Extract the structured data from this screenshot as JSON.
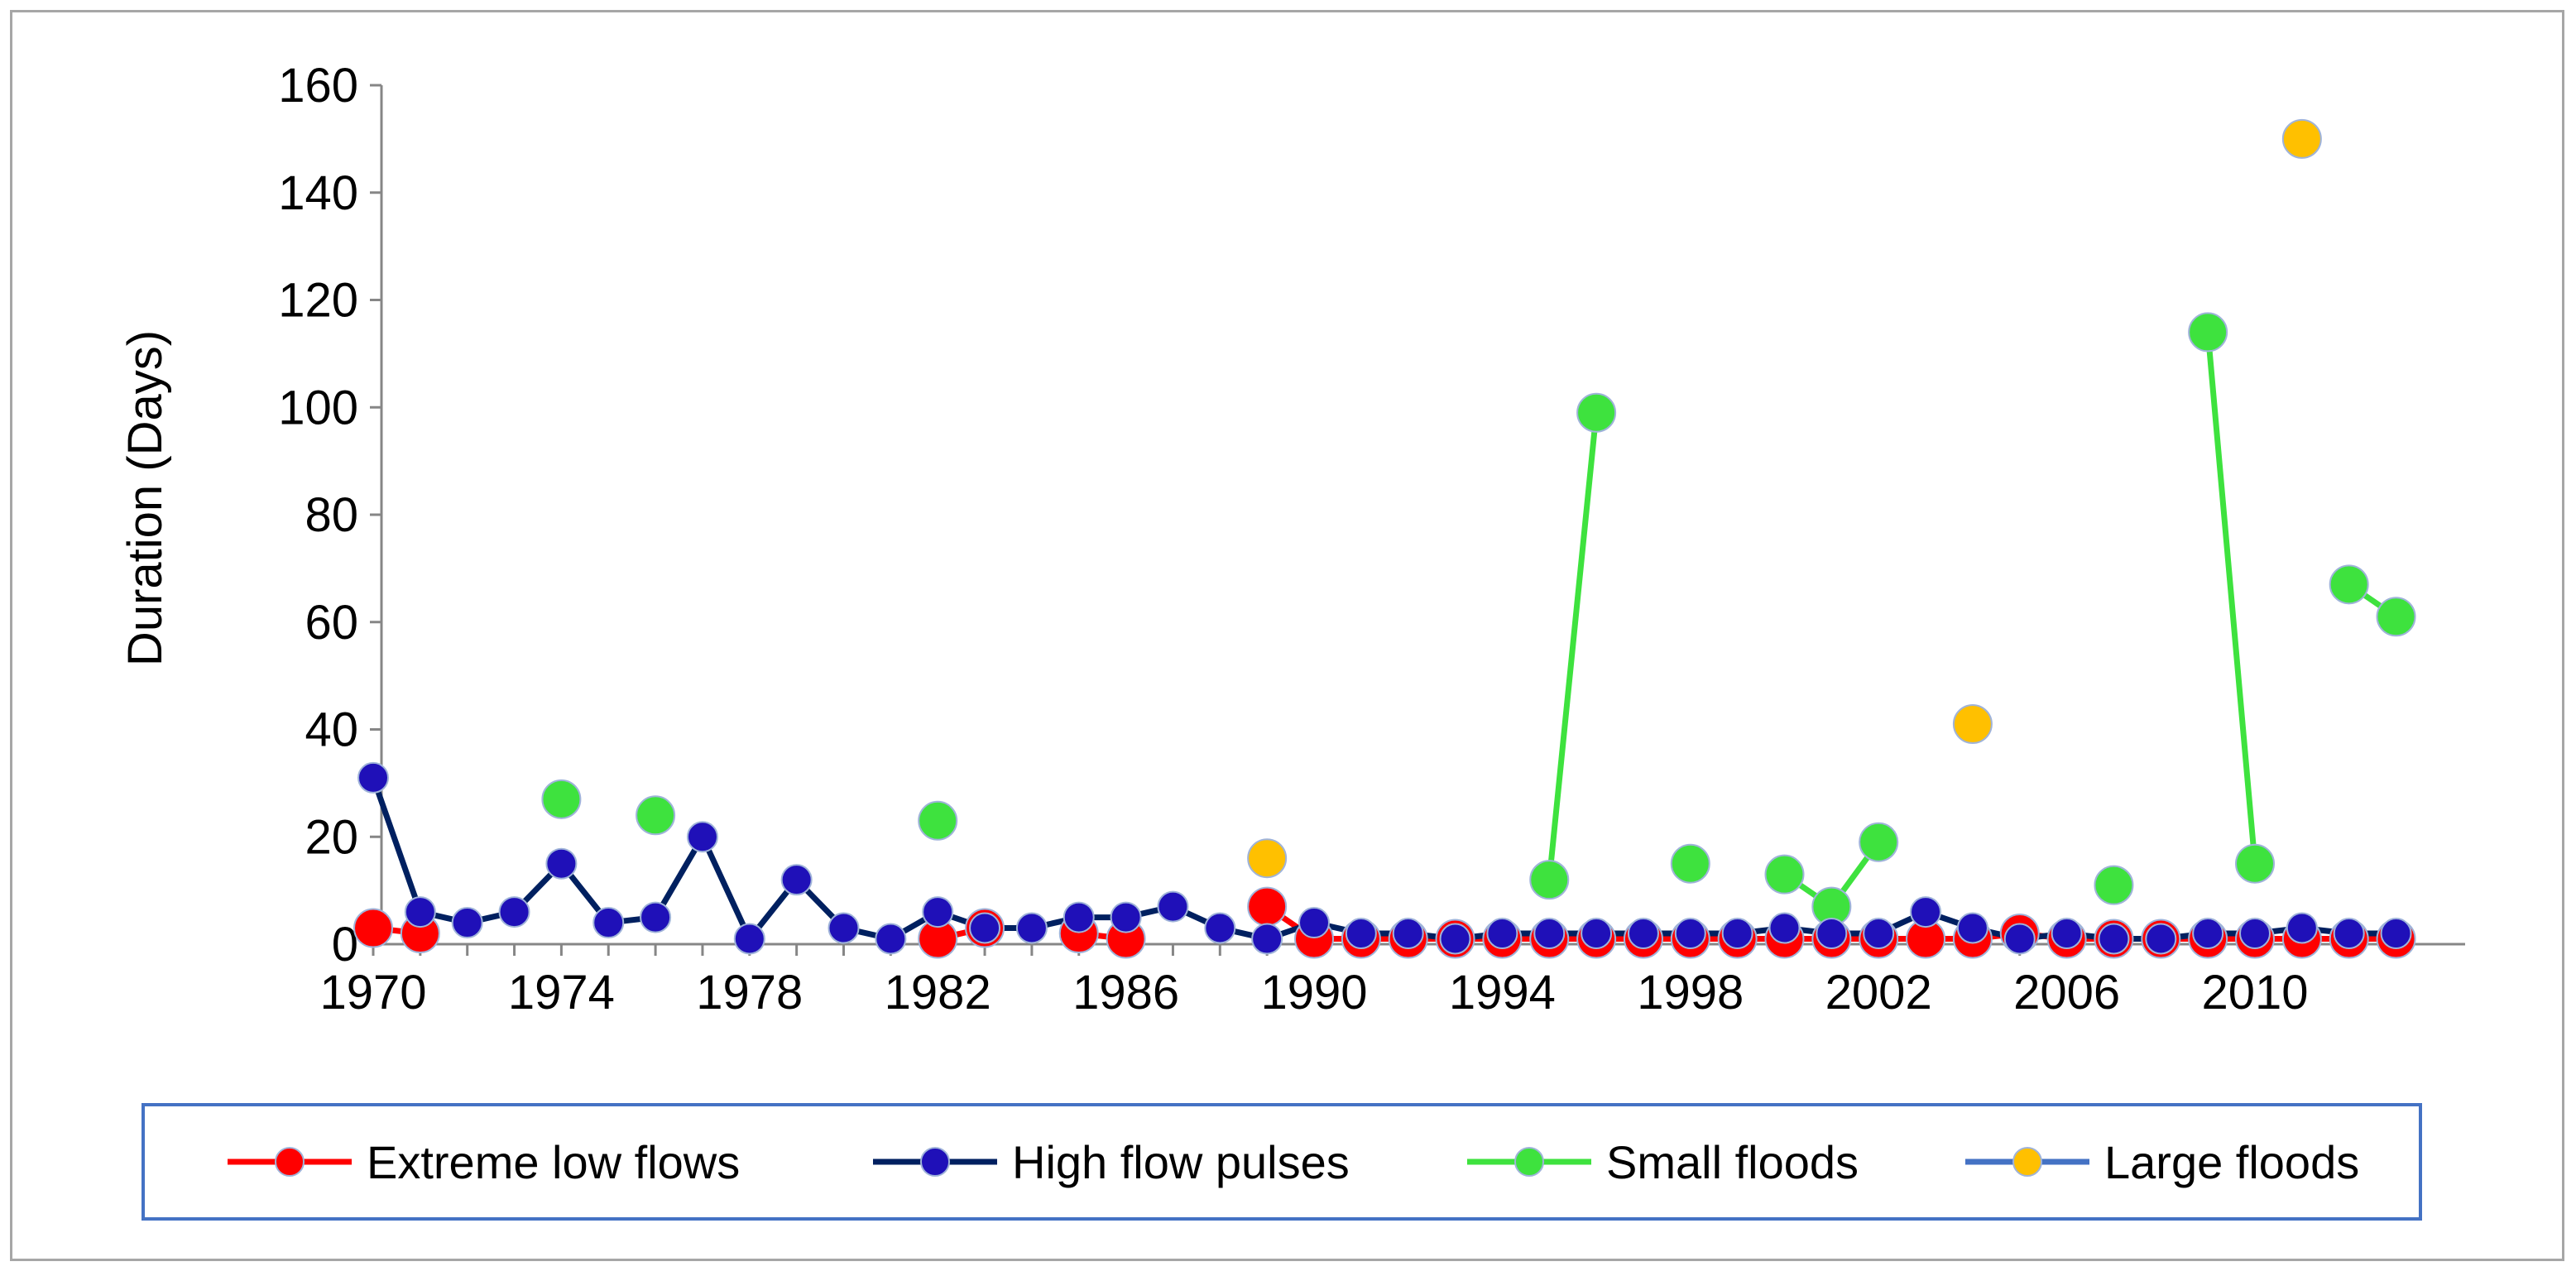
{
  "chart_data": {
    "type": "line",
    "title": "",
    "xlabel": "",
    "ylabel": "Duration (Days)",
    "xlim": [
      1970,
      2013
    ],
    "ylim": [
      0,
      160
    ],
    "x_ticks": [
      1970,
      1974,
      1978,
      1982,
      1986,
      1990,
      1994,
      1998,
      2002,
      2006,
      2010
    ],
    "y_ticks": [
      0,
      20,
      40,
      60,
      80,
      100,
      120,
      140,
      160
    ],
    "grid": false,
    "legend_position": "bottom",
    "series": [
      {
        "name": "Extreme low flows",
        "line_color": "#ff0000",
        "marker_color": "#ff0000",
        "draw_line": true,
        "points": [
          [
            1970,
            3
          ],
          [
            1971,
            2
          ],
          [
            1982,
            1
          ],
          [
            1983,
            3
          ],
          [
            1985,
            2
          ],
          [
            1986,
            1
          ],
          [
            1989,
            7
          ],
          [
            1990,
            1
          ],
          [
            1991,
            1
          ],
          [
            1992,
            1
          ],
          [
            1993,
            1
          ],
          [
            1994,
            1
          ],
          [
            1995,
            1
          ],
          [
            1996,
            1
          ],
          [
            1997,
            1
          ],
          [
            1998,
            1
          ],
          [
            1999,
            1
          ],
          [
            2000,
            1
          ],
          [
            2001,
            1
          ],
          [
            2002,
            1
          ],
          [
            2003,
            1
          ],
          [
            2004,
            1
          ],
          [
            2005,
            2
          ],
          [
            2006,
            1
          ],
          [
            2007,
            1
          ],
          [
            2008,
            1
          ],
          [
            2009,
            1
          ],
          [
            2010,
            1
          ],
          [
            2011,
            1
          ],
          [
            2012,
            1
          ],
          [
            2013,
            1
          ]
        ]
      },
      {
        "name": "High flow pulses",
        "line_color": "#002060",
        "marker_color": "#1f10b8",
        "draw_line": true,
        "points": [
          [
            1970,
            31
          ],
          [
            1971,
            6
          ],
          [
            1972,
            4
          ],
          [
            1973,
            6
          ],
          [
            1974,
            15
          ],
          [
            1975,
            4
          ],
          [
            1976,
            5
          ],
          [
            1977,
            20
          ],
          [
            1978,
            1
          ],
          [
            1979,
            12
          ],
          [
            1980,
            3
          ],
          [
            1981,
            1
          ],
          [
            1982,
            6
          ],
          [
            1983,
            3
          ],
          [
            1984,
            3
          ],
          [
            1985,
            5
          ],
          [
            1986,
            5
          ],
          [
            1987,
            7
          ],
          [
            1988,
            3
          ],
          [
            1989,
            1
          ],
          [
            1990,
            4
          ],
          [
            1991,
            2
          ],
          [
            1992,
            2
          ],
          [
            1993,
            1
          ],
          [
            1994,
            2
          ],
          [
            1995,
            2
          ],
          [
            1996,
            2
          ],
          [
            1997,
            2
          ],
          [
            1998,
            2
          ],
          [
            1999,
            2
          ],
          [
            2000,
            3
          ],
          [
            2001,
            2
          ],
          [
            2002,
            2
          ],
          [
            2003,
            6
          ],
          [
            2004,
            3
          ],
          [
            2005,
            1
          ],
          [
            2006,
            2
          ],
          [
            2007,
            1
          ],
          [
            2008,
            1
          ],
          [
            2009,
            2
          ],
          [
            2010,
            2
          ],
          [
            2011,
            3
          ],
          [
            2012,
            2
          ],
          [
            2013,
            2
          ]
        ]
      },
      {
        "name": "Small floods",
        "line_color": "#3ee23e",
        "marker_color": "#3ee23e",
        "draw_line": true,
        "points": [
          [
            1974,
            27
          ],
          [
            1976,
            24
          ],
          [
            1982,
            23
          ],
          [
            1995,
            12
          ],
          [
            1996,
            99
          ],
          [
            1998,
            15
          ],
          [
            2000,
            13
          ],
          [
            2001,
            7
          ],
          [
            2002,
            19
          ],
          [
            2007,
            11
          ],
          [
            2009,
            114
          ],
          [
            2010,
            15
          ],
          [
            2012,
            67
          ],
          [
            2013,
            61
          ]
        ]
      },
      {
        "name": "Large floods",
        "line_color": "#4472c4",
        "marker_color": "#ffc000",
        "draw_line": false,
        "points": [
          [
            1989,
            16
          ],
          [
            2004,
            41
          ],
          [
            2011,
            150
          ]
        ]
      }
    ]
  }
}
